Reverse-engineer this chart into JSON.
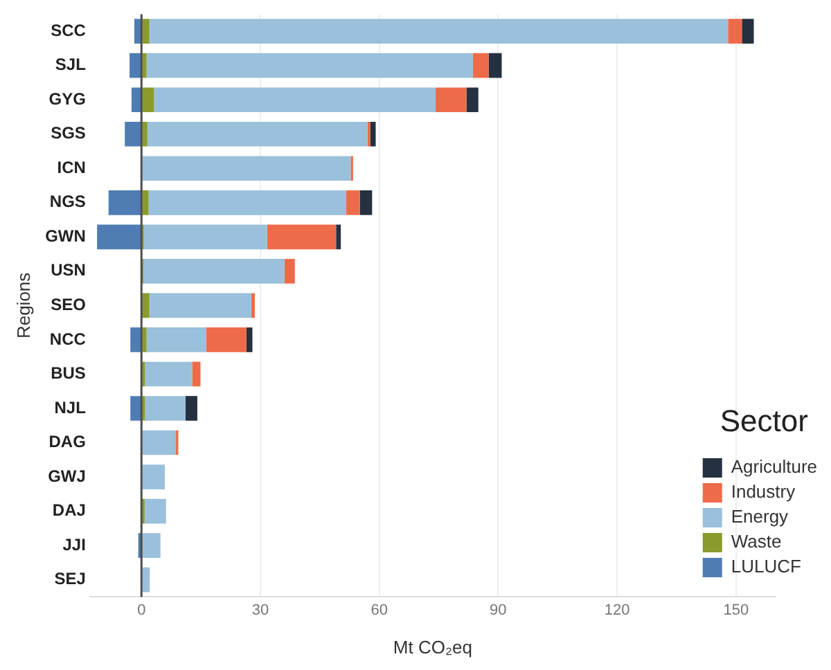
{
  "chart_data": {
    "type": "bar",
    "orientation": "horizontal",
    "stacked": true,
    "xlabel": "Mt CO₂eq",
    "ylabel": "Regions",
    "legend_title": "Sector",
    "legend": "bottom right",
    "grid": "x",
    "categories": [
      "SCC",
      "SJL",
      "GYG",
      "SGS",
      "ICN",
      "NGS",
      "GWN",
      "USN",
      "SEO",
      "NCC",
      "BUS",
      "NJL",
      "DAG",
      "GWJ",
      "DAJ",
      "JJI",
      "SEJ"
    ],
    "xlim": [
      -13,
      160
    ],
    "xticks": [
      0,
      30,
      60,
      90,
      120,
      150
    ],
    "ref_lines": [
      {
        "axis": "x",
        "value": 0,
        "color": "#4d4d4d"
      }
    ],
    "series": [
      {
        "name": "LULUCF",
        "color": "#4f7db3",
        "values": [
          -1.8,
          -3,
          -2.5,
          -4.2,
          null,
          -8.3,
          -11.2,
          null,
          null,
          -2.8,
          null,
          -2.8,
          null,
          null,
          null,
          -0.8,
          null
        ]
      },
      {
        "name": "Waste",
        "color": "#8a9a2c",
        "values": [
          2,
          1.3,
          3.2,
          1.5,
          null,
          1.8,
          0.6,
          0.5,
          2,
          1.3,
          0.9,
          0.9,
          null,
          null,
          0.8,
          null,
          null
        ]
      },
      {
        "name": "Energy",
        "color": "#9ac0db",
        "values": [
          146,
          82.3,
          71,
          55.5,
          52.8,
          49.8,
          31.1,
          35.6,
          25.7,
          15,
          11.9,
          10.2,
          8.7,
          5.9,
          5.4,
          4.8,
          2.1
        ]
      },
      {
        "name": "Industry",
        "color": "#ee6b4a",
        "values": [
          3.5,
          4,
          7.8,
          0.7,
          0.6,
          3.5,
          17.4,
          2.6,
          0.9,
          10.2,
          2.1,
          null,
          0.6,
          null,
          null,
          null,
          null
        ]
      },
      {
        "name": "Agriculture",
        "color": "#253041",
        "values": [
          3,
          3.3,
          3,
          1.4,
          null,
          3.1,
          1.2,
          null,
          null,
          1.5,
          null,
          3,
          null,
          null,
          null,
          null,
          null
        ]
      }
    ]
  }
}
